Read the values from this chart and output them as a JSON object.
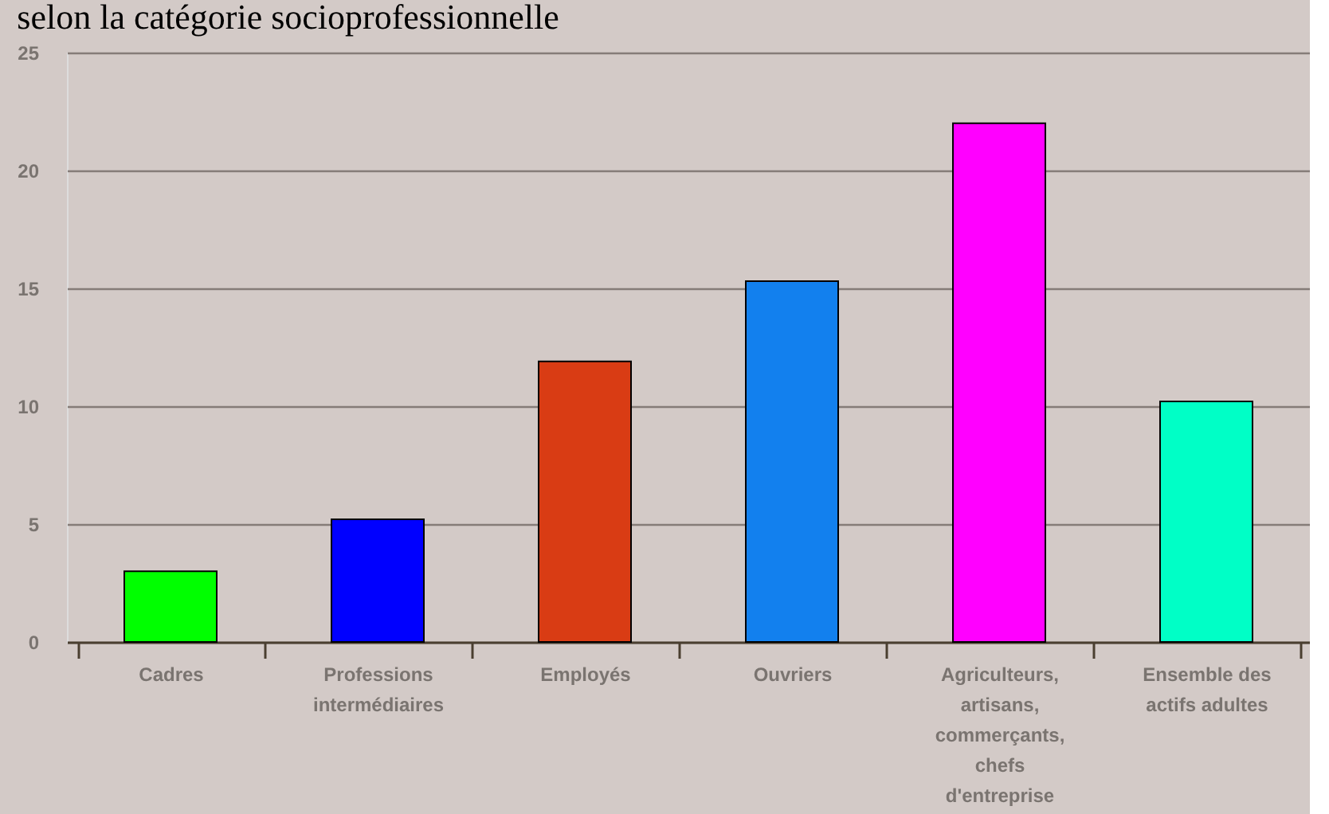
{
  "chart_data": {
    "type": "bar",
    "title": "selon la catégorie socioprofessionnelle",
    "categories": [
      "Cadres",
      "Professions intermédiaires",
      "Employés",
      "Ouvriers",
      "Agriculteurs, artisans, commerçants, chefs d'entreprise",
      "Ensemble des actifs adultes"
    ],
    "values": [
      3.0,
      5.2,
      11.9,
      15.3,
      22.0,
      10.2
    ],
    "colors": [
      "#00ff00",
      "#0000ff",
      "#d93c14",
      "#1280ee",
      "#ff00ff",
      "#00ffc6"
    ],
    "ylim": [
      0,
      25
    ],
    "yticks": [
      0,
      5,
      10,
      15,
      20,
      25
    ],
    "grid": "y"
  }
}
